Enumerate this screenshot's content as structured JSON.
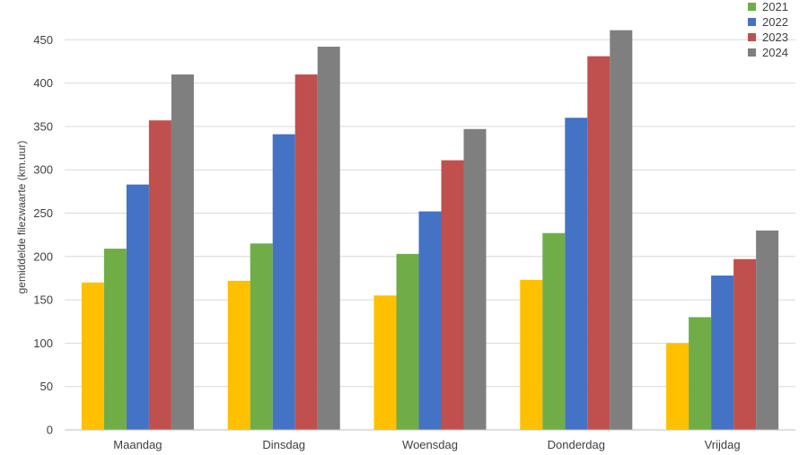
{
  "chart_data": {
    "type": "bar",
    "title": "",
    "xlabel": "",
    "ylabel": "gemiddelde filezwaarte (km.uur)",
    "ylim": [
      0,
      500
    ],
    "yticks": [
      0,
      50,
      100,
      150,
      200,
      250,
      300,
      350,
      400,
      450
    ],
    "grid": true,
    "legend_position": "top-right",
    "categories": [
      "Maandag",
      "Dinsdag",
      "Woensdag",
      "Donderdag",
      "Vrijdag"
    ],
    "series": [
      {
        "name": "",
        "color": "#ffc000",
        "values": [
          170,
          172,
          155,
          173,
          100
        ]
      },
      {
        "name": "2021",
        "color": "#70ad47",
        "values": [
          209,
          215,
          203,
          227,
          130
        ]
      },
      {
        "name": "2022",
        "color": "#4472c4",
        "values": [
          283,
          341,
          252,
          360,
          178
        ]
      },
      {
        "name": "2023",
        "color": "#c0504d",
        "values": [
          357,
          410,
          311,
          431,
          197
        ]
      },
      {
        "name": "2024",
        "color": "#7f7f7f",
        "values": [
          410,
          442,
          347,
          461,
          230
        ]
      }
    ]
  }
}
